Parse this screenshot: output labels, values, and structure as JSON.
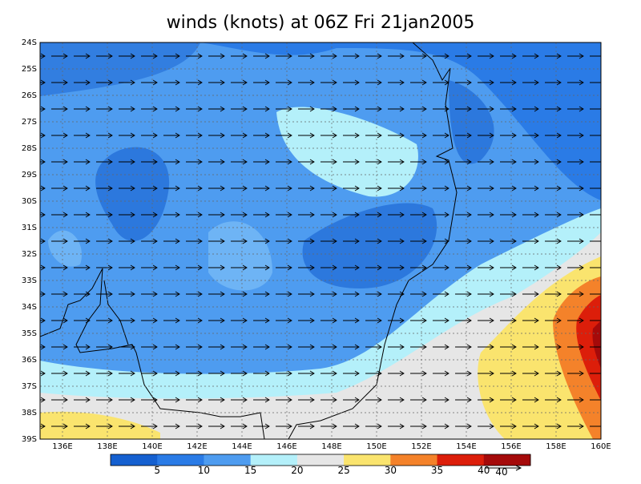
{
  "title": "winds (knots) at 06Z Fri 21jan2005",
  "lat_ticks": [
    "24S",
    "25S",
    "26S",
    "27S",
    "28S",
    "29S",
    "30S",
    "31S",
    "32S",
    "33S",
    "34S",
    "35S",
    "36S",
    "37S",
    "38S",
    "39S"
  ],
  "lon_ticks": [
    "136E",
    "138E",
    "140E",
    "142E",
    "144E",
    "146E",
    "148E",
    "150E",
    "152E",
    "154E",
    "156E",
    "158E",
    "160E"
  ],
  "colorbar": {
    "levels": [
      5,
      10,
      15,
      20,
      25,
      30,
      35,
      40
    ],
    "colors": [
      "#1560d0",
      "#2a7be6",
      "#4e9cf0",
      "#b4f0fa",
      "#e6e6e6",
      "#fae46e",
      "#f4822a",
      "#dc1e0a",
      "#a50a0a"
    ]
  },
  "reference_vector_label": "40"
}
